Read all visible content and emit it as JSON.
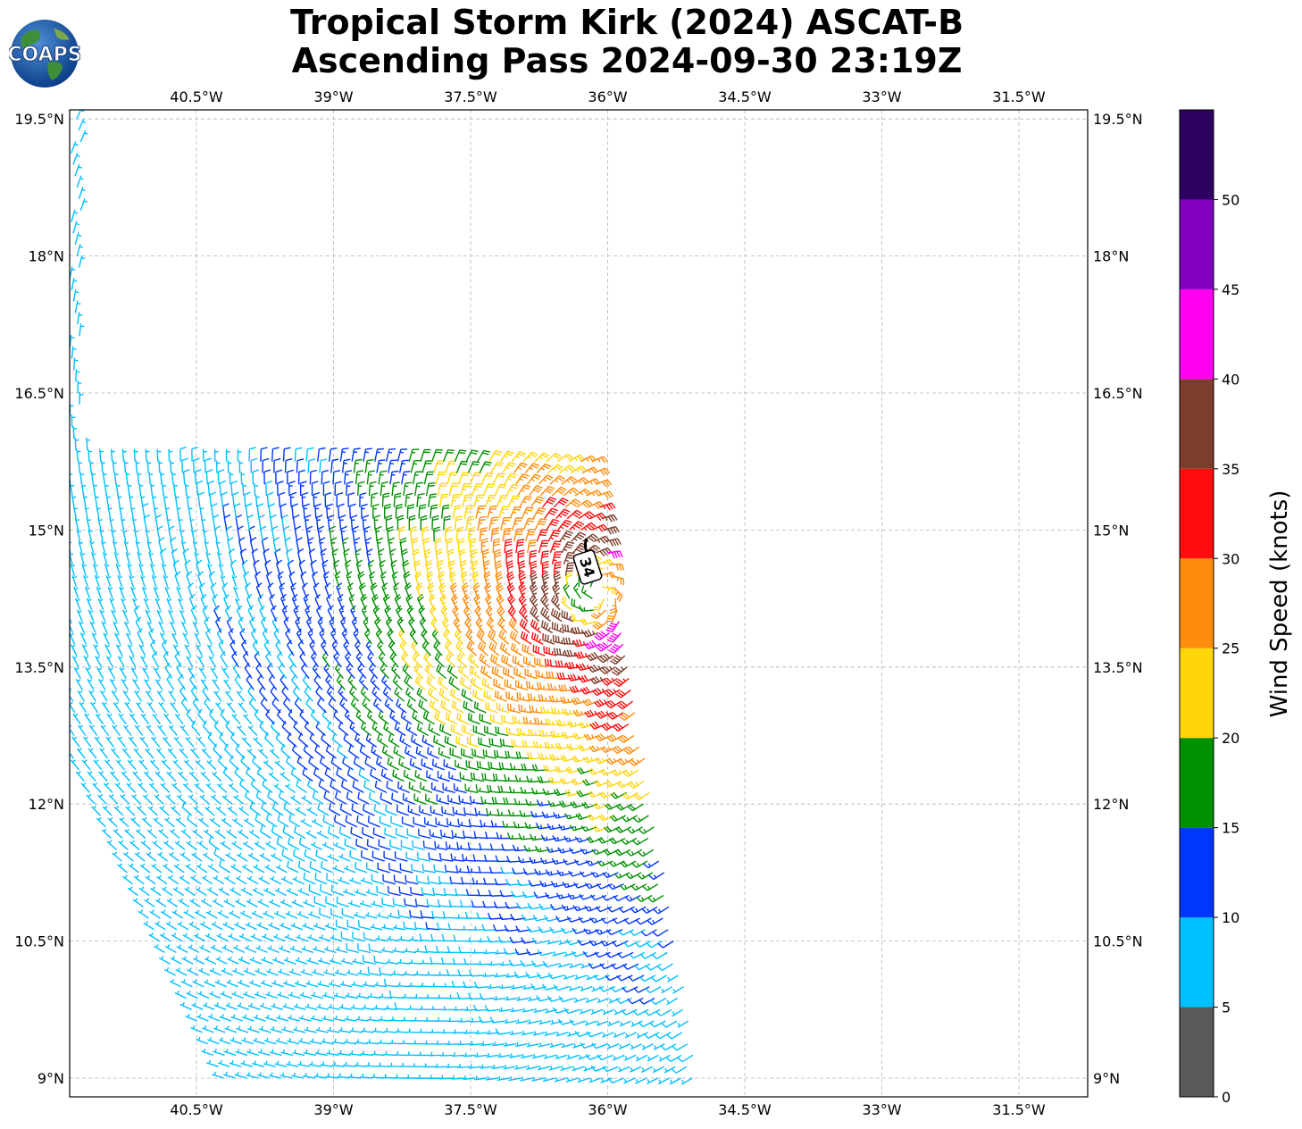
{
  "title": {
    "line1": "Tropical Storm Kirk (2024) ASCAT-B",
    "line2": "Ascending Pass 2024-09-30 23:19Z"
  },
  "logo": {
    "text": "COAPS"
  },
  "map": {
    "lon_range": [
      -42.0,
      -30.8
    ],
    "lat_range": [
      8.8,
      19.6
    ],
    "lon_ticks": [
      {
        "value": -40.5,
        "label": "40.5°W"
      },
      {
        "value": -39.0,
        "label": "39°W"
      },
      {
        "value": -37.5,
        "label": "37.5°W"
      },
      {
        "value": -36.0,
        "label": "36°W"
      },
      {
        "value": -34.5,
        "label": "34.5°W"
      },
      {
        "value": -33.0,
        "label": "33°W"
      },
      {
        "value": -31.5,
        "label": "31.5°W"
      }
    ],
    "lat_ticks": [
      {
        "value": 19.5,
        "label": "19.5°N"
      },
      {
        "value": 18.0,
        "label": "18°N"
      },
      {
        "value": 16.5,
        "label": "16.5°N"
      },
      {
        "value": 15.0,
        "label": "15°N"
      },
      {
        "value": 13.5,
        "label": "13.5°N"
      },
      {
        "value": 12.0,
        "label": "12°N"
      },
      {
        "value": 10.5,
        "label": "10.5°N"
      },
      {
        "value": 9.0,
        "label": "9°N"
      }
    ],
    "grid": true,
    "storm_center": {
      "lon": -36.1,
      "lat": 14.3
    },
    "wind_radius_label": "34"
  },
  "colorbar": {
    "label": "Wind Speed (knots)",
    "bins": [
      {
        "min": 0,
        "max": 5,
        "color": "#595959"
      },
      {
        "min": 5,
        "max": 10,
        "color": "#00bfff"
      },
      {
        "min": 10,
        "max": 15,
        "color": "#0037ff"
      },
      {
        "min": 15,
        "max": 20,
        "color": "#009100"
      },
      {
        "min": 20,
        "max": 25,
        "color": "#ffd60a"
      },
      {
        "min": 25,
        "max": 30,
        "color": "#ff8c0a"
      },
      {
        "min": 30,
        "max": 35,
        "color": "#ff0d0d"
      },
      {
        "min": 35,
        "max": 40,
        "color": "#7d3d2b"
      },
      {
        "min": 40,
        "max": 45,
        "color": "#ff00f2"
      },
      {
        "min": 45,
        "max": 50,
        "color": "#8200bf"
      },
      {
        "min": 50,
        "max": 55,
        "color": "#2e0061"
      }
    ],
    "tick_labels": [
      "0",
      "5",
      "10",
      "15",
      "20",
      "25",
      "30",
      "35",
      "40",
      "45",
      "50"
    ]
  }
}
